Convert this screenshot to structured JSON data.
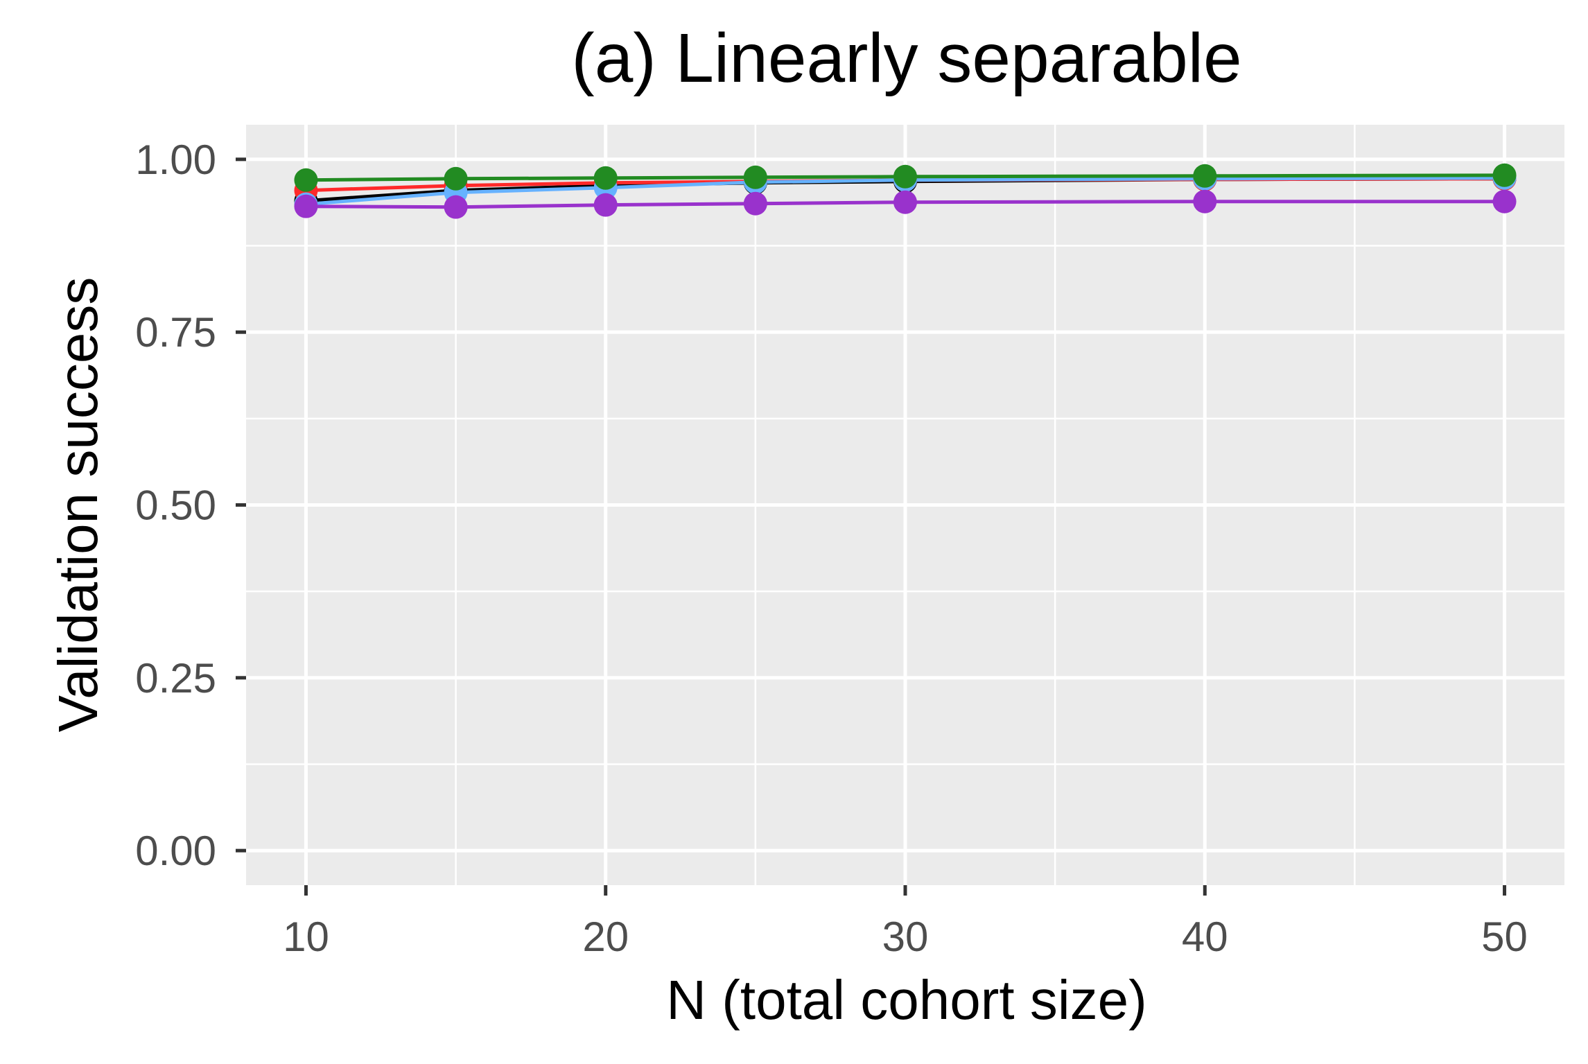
{
  "chart_data": {
    "type": "line",
    "title": "(a) Linearly separable",
    "xlabel": "N (total cohort size)",
    "ylabel": "Validation success",
    "x": [
      10,
      15,
      20,
      25,
      30,
      40,
      50
    ],
    "xlim": [
      8,
      52
    ],
    "ylim": [
      -0.05,
      1.05
    ],
    "x_ticks": [
      10,
      20,
      30,
      40,
      50
    ],
    "x_tick_labels": [
      "10",
      "20",
      "30",
      "40",
      "50"
    ],
    "y_ticks": [
      0,
      0.25,
      0.5,
      0.75,
      1.0
    ],
    "y_tick_labels": [
      "0.00",
      "0.25",
      "0.50",
      "0.75",
      "1.00"
    ],
    "grid": true,
    "legend": "none",
    "panel_background": "#ebebeb",
    "grid_color": "#ffffff",
    "series": [
      {
        "color": "#000000",
        "values": [
          0.94,
          0.955,
          0.962,
          0.966,
          0.968,
          0.971,
          0.972
        ]
      },
      {
        "color": "#ff2a2a",
        "values": [
          0.955,
          0.962,
          0.966,
          0.968,
          0.97,
          0.971,
          0.972
        ]
      },
      {
        "color": "#66b2ff",
        "values": [
          0.935,
          0.952,
          0.959,
          0.967,
          0.97,
          0.972,
          0.973
        ]
      },
      {
        "color": "#9932cc",
        "values": [
          0.932,
          0.931,
          0.934,
          0.936,
          0.938,
          0.939,
          0.939
        ]
      },
      {
        "color": "#228b22",
        "values": [
          0.97,
          0.972,
          0.973,
          0.974,
          0.975,
          0.976,
          0.977
        ]
      }
    ]
  }
}
